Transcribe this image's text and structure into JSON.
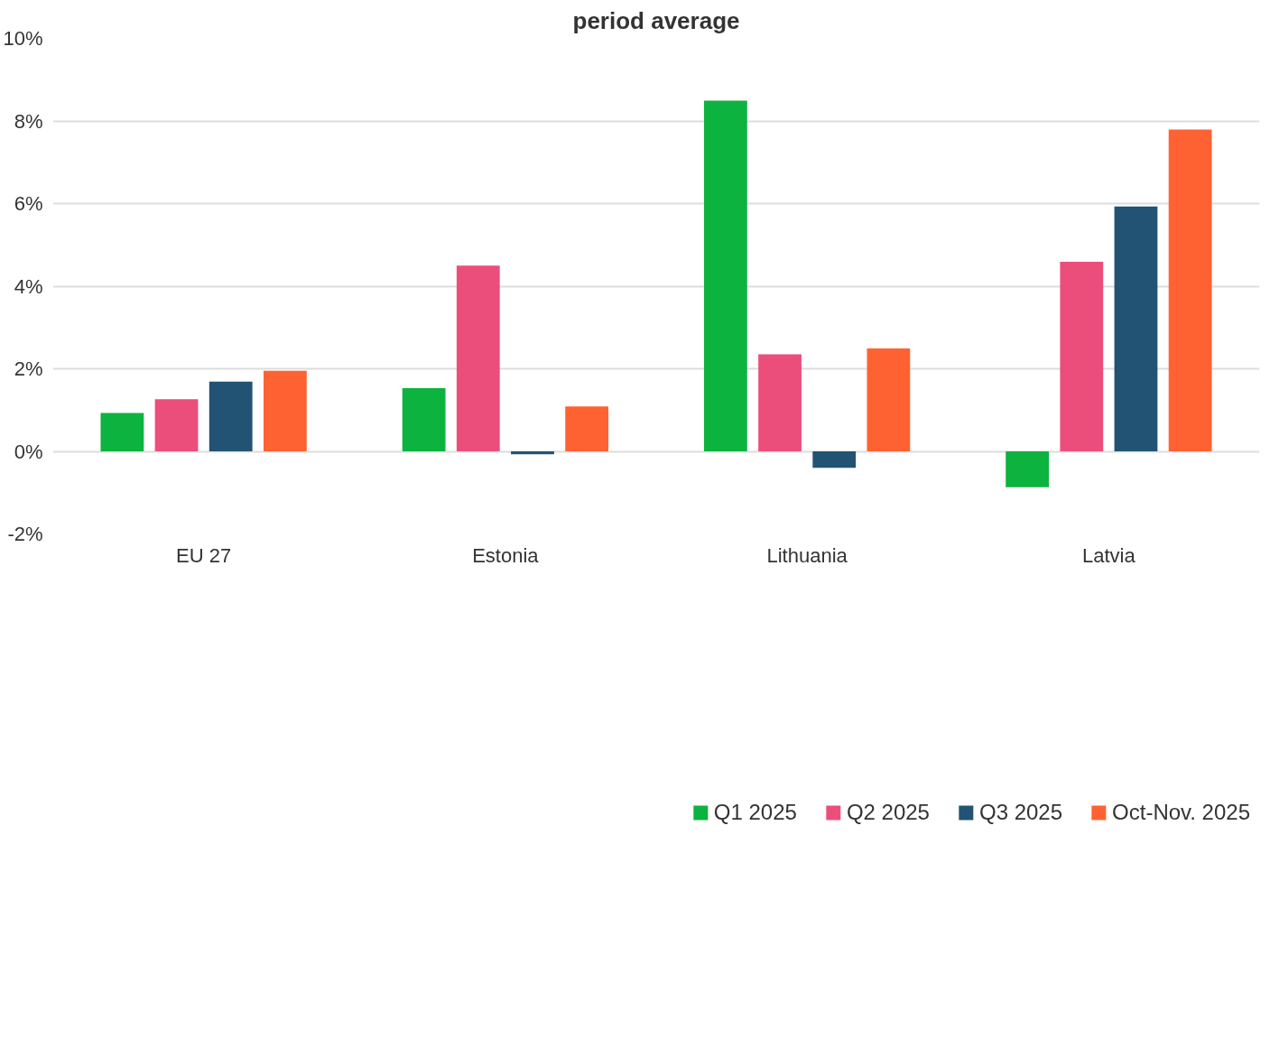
{
  "chart_data": {
    "type": "bar",
    "title": "period average",
    "categories": [
      "EU 27",
      "Estonia",
      "Lithuania",
      "Latvia"
    ],
    "series": [
      {
        "name": "Q1 2025",
        "color": "#0db33f",
        "values": [
          0.93,
          1.53,
          8.49,
          -0.87
        ]
      },
      {
        "name": "Q2 2025",
        "color": "#ec4e7c",
        "values": [
          1.26,
          4.5,
          2.35,
          4.59
        ]
      },
      {
        "name": "Q3 2025",
        "color": "#235374",
        "values": [
          1.69,
          -0.07,
          -0.4,
          5.93
        ]
      },
      {
        "name": "Oct-Nov. 2025",
        "color": "#ff6232",
        "values": [
          1.95,
          1.09,
          2.49,
          7.79
        ]
      }
    ],
    "ylim": [
      -2,
      10
    ],
    "yticks": [
      {
        "value": -2,
        "label": "-2%"
      },
      {
        "value": 0,
        "label": "0%"
      },
      {
        "value": 2,
        "label": "2%"
      },
      {
        "value": 4,
        "label": "4%"
      },
      {
        "value": 6,
        "label": "6%"
      },
      {
        "value": 8,
        "label": "8%"
      },
      {
        "value": 10,
        "label": "10%"
      }
    ],
    "grid": "y",
    "legend": "bottom"
  }
}
